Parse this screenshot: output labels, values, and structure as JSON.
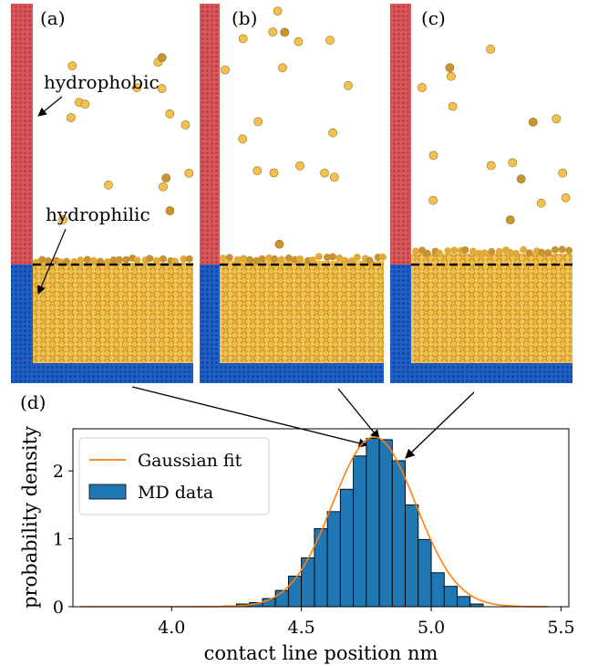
{
  "panels": [
    {
      "label": "(a)",
      "annotations": [
        "hydrophobic",
        "hydrophilic"
      ]
    },
    {
      "label": "(b)"
    },
    {
      "label": "(c)"
    }
  ],
  "hist_panel_label": "(d)",
  "colors": {
    "hydrophobic_wall": "#d9575b",
    "hydrophilic_wall": "#1f5fc8",
    "particle": "#f2c14e",
    "contact_line": "#000000",
    "hist_bar": "#1f77b4",
    "fit_line": "#ff7f0e"
  },
  "chart_data": {
    "type": "bar",
    "xlabel": "contact line position nm",
    "ylabel": "probability density",
    "xlim": [
      3.62,
      5.53
    ],
    "ylim": [
      0,
      2.62
    ],
    "xticks": [
      4.0,
      4.5,
      5.0,
      5.5
    ],
    "xtick_labels": [
      "4.0",
      "4.5",
      "5.0",
      "5.5"
    ],
    "yticks": [
      0,
      1,
      2
    ],
    "ytick_labels": [
      "0",
      "1",
      "2"
    ],
    "legend": [
      "Gaussian fit",
      "MD data"
    ],
    "legend_position": "upper-left",
    "bins_left": [
      4.2,
      4.25,
      4.3,
      4.35,
      4.4,
      4.45,
      4.5,
      4.55,
      4.6,
      4.65,
      4.7,
      4.75,
      4.8,
      4.85,
      4.9,
      4.95,
      5.0,
      5.05,
      5.1,
      5.15
    ],
    "bin_width": 0.05,
    "values": [
      0.01,
      0.04,
      0.06,
      0.12,
      0.24,
      0.45,
      0.72,
      1.15,
      1.4,
      1.73,
      2.22,
      2.48,
      2.46,
      2.15,
      1.5,
      0.99,
      0.5,
      0.3,
      0.15,
      0.04
    ],
    "gaussian_fit": {
      "mu": 4.78,
      "sigma": 0.16,
      "amplitude": 2.5,
      "range": [
        3.65,
        5.45
      ]
    }
  }
}
